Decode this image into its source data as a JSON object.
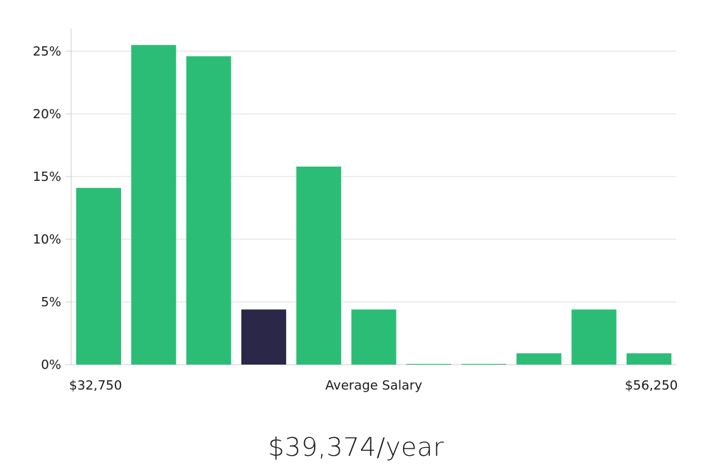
{
  "chart_data": {
    "type": "bar",
    "title": "",
    "xlabel": "Average Salary",
    "ylabel": "",
    "x_min_label": "$32,750",
    "x_max_label": "$56,250",
    "ylim": [
      0,
      0.27
    ],
    "yticks": [
      0,
      0.05,
      0.1,
      0.15,
      0.2,
      0.25
    ],
    "ytick_labels": [
      "0%",
      "5%",
      "10%",
      "15%",
      "20%",
      "25%"
    ],
    "grid": true,
    "values": [
      0.141,
      0.255,
      0.246,
      0.044,
      0.158,
      0.044,
      0.0,
      0.0,
      0.009,
      0.044,
      0.009
    ],
    "highlight_index": 3,
    "colors": {
      "bar": "#2bbd76",
      "highlight": "#2b2749",
      "grid": "#dddddd",
      "axis": "#cccccc"
    }
  },
  "summary": {
    "salary_text": "$39,374/year"
  }
}
